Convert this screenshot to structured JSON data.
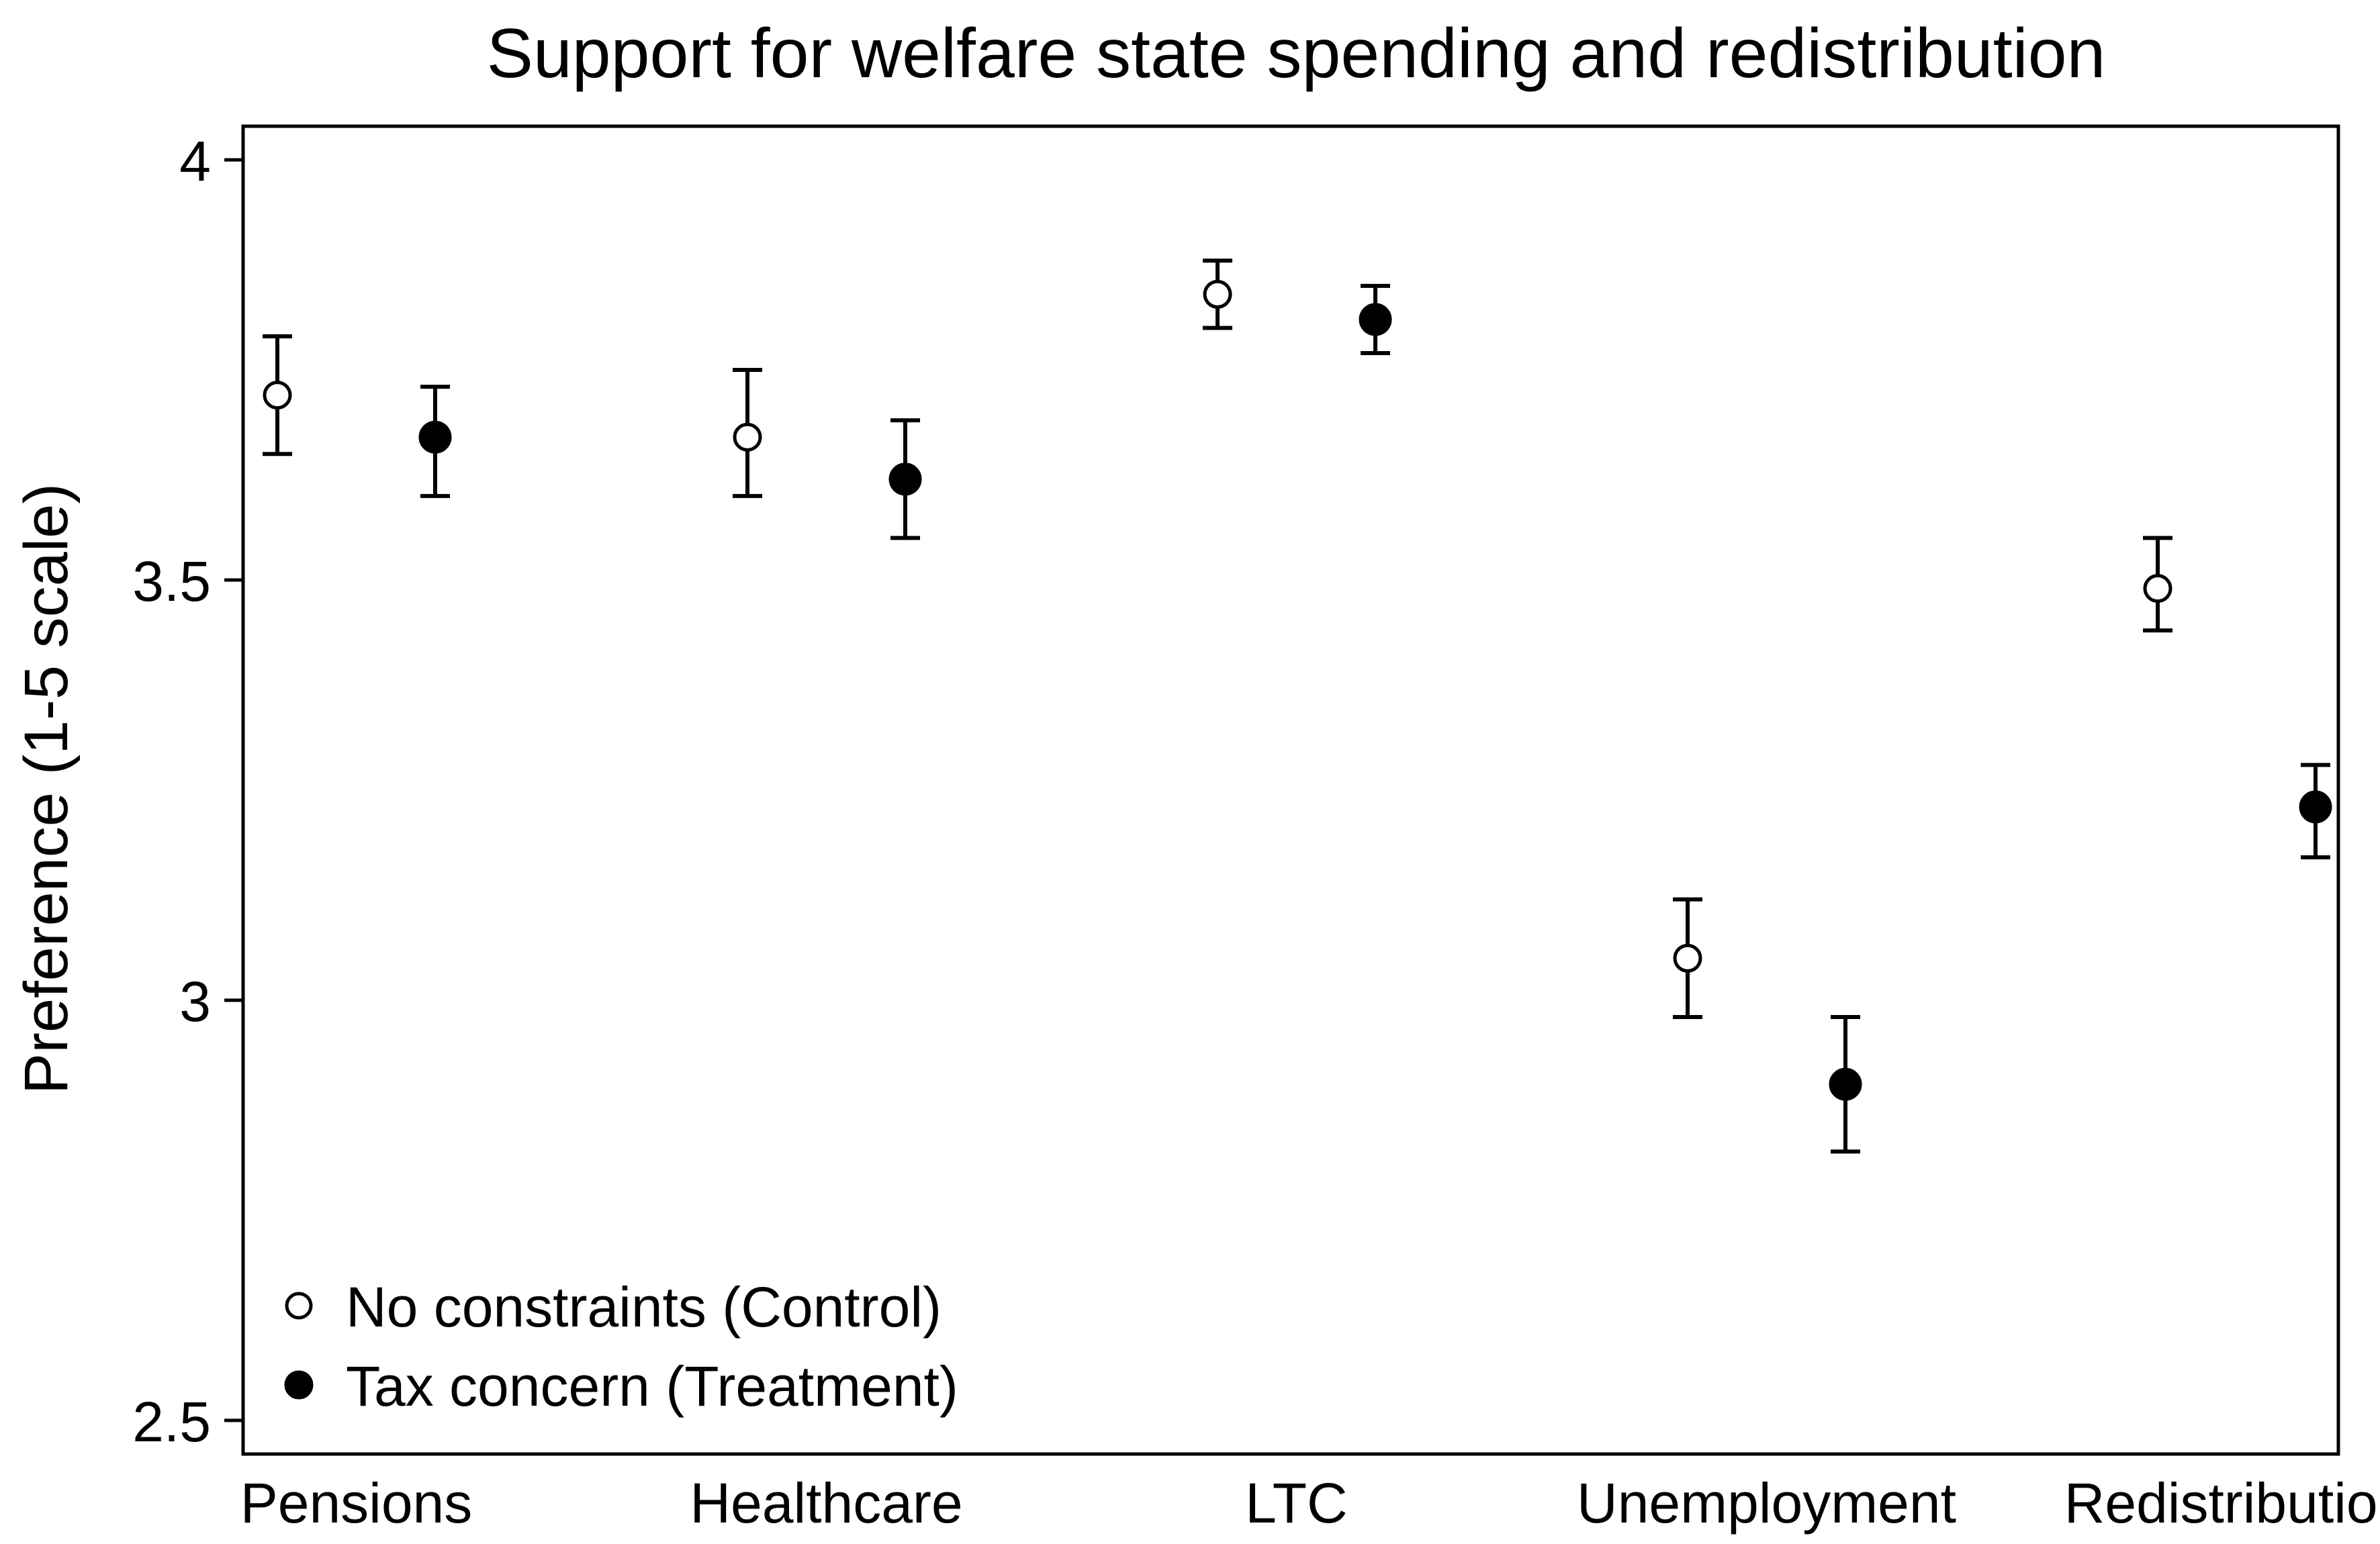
{
  "chart_data": {
    "type": "scatter",
    "title": "Support for welfare state spending and redistribution",
    "xlabel": "",
    "ylabel": "Preference (1-5 scale)",
    "ylim": [
      2.46,
      4.04
    ],
    "yticks": [
      2.5,
      3,
      3.5,
      4
    ],
    "ytick_labels": [
      "2.5",
      "3",
      "3.5",
      "4"
    ],
    "grid": false,
    "legend_position": "bottom-left",
    "categories": [
      "Pensions",
      "Healthcare",
      "LTC",
      "Unemployment",
      "Redistribution"
    ],
    "series": [
      {
        "name": "No constraints (Control)",
        "marker": "hollow-circle",
        "values": [
          3.72,
          3.67,
          3.84,
          3.05,
          3.49
        ],
        "ci_low": [
          3.65,
          3.6,
          3.8,
          2.98,
          3.44
        ],
        "ci_high": [
          3.79,
          3.75,
          3.88,
          3.12,
          3.55
        ]
      },
      {
        "name": "Tax concern (Treatment)",
        "marker": "filled-circle",
        "values": [
          3.67,
          3.62,
          3.81,
          2.9,
          3.23
        ],
        "ci_low": [
          3.6,
          3.55,
          3.77,
          2.82,
          3.17
        ],
        "ci_high": [
          3.73,
          3.69,
          3.85,
          2.98,
          3.28
        ]
      }
    ]
  }
}
